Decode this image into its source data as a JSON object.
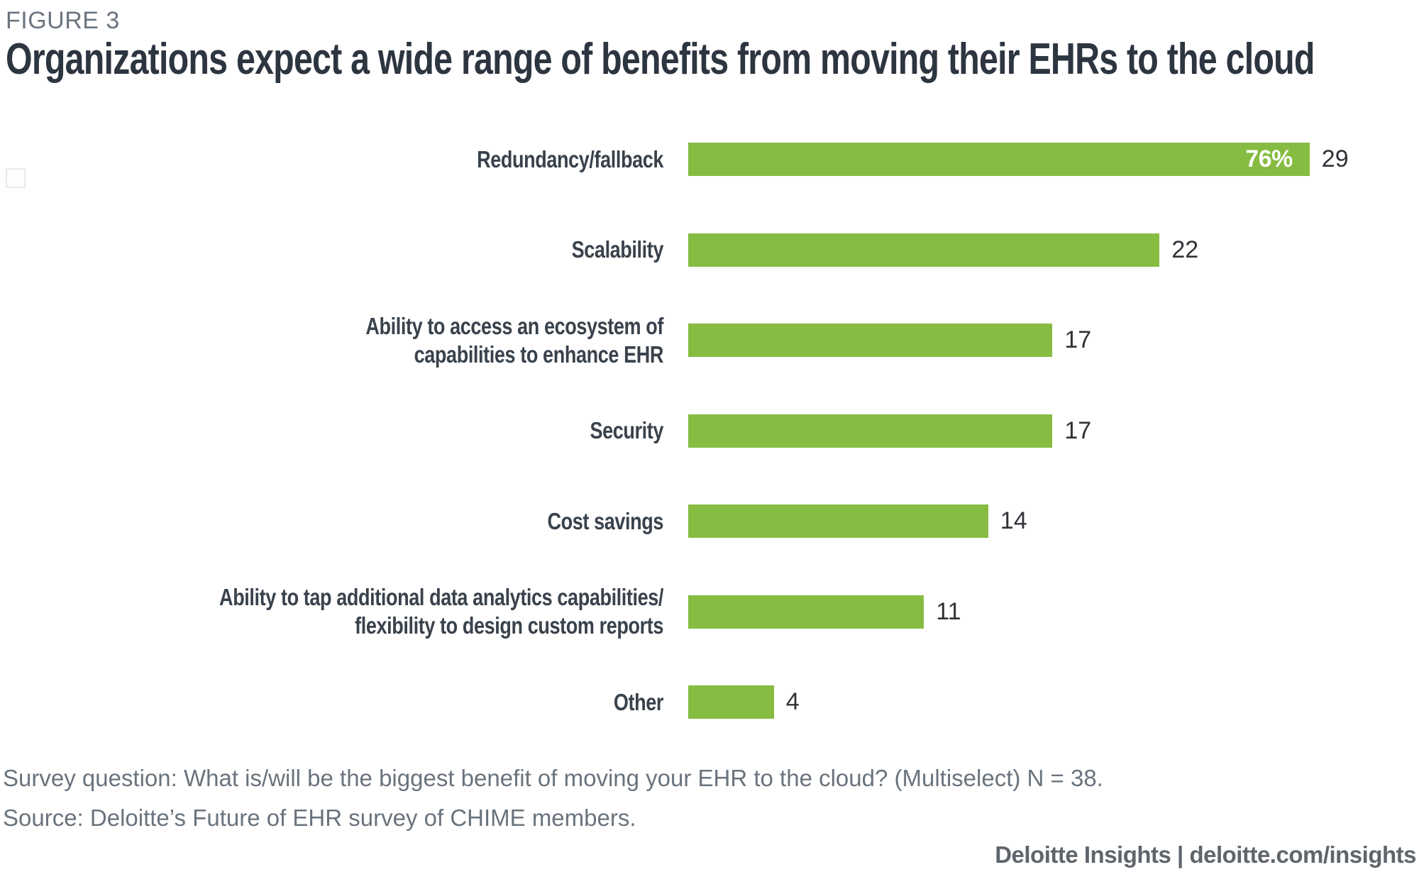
{
  "figure_label": "FIGURE 3",
  "title": "Organizations expect a wide range of benefits from moving their EHRs to the cloud",
  "chart_data": {
    "type": "bar",
    "orientation": "horizontal",
    "title": "Organizations expect a wide range of benefits from moving their EHRs to the cloud",
    "categories": [
      [
        "Redundancy/fallback"
      ],
      [
        "Scalability"
      ],
      [
        "Ability to access an ecosystem of",
        "capabilities to enhance EHR"
      ],
      [
        "Security"
      ],
      [
        "Cost savings"
      ],
      [
        "Ability to tap additional data analytics capabilities/",
        "flexibility to design custom reports"
      ],
      [
        "Other"
      ]
    ],
    "values": [
      29,
      22,
      17,
      17,
      14,
      11,
      4
    ],
    "inside_labels": [
      "76%",
      "",
      "",
      "",
      "",
      "",
      ""
    ],
    "value_labels": [
      "29",
      "22",
      "17",
      "17",
      "14",
      "11",
      "4"
    ],
    "xlim": [
      0,
      29
    ],
    "axes_visible": false,
    "gridlines": false,
    "legend": "none",
    "bar_color": "#86BC42",
    "inside_label_color": "#FFFFFF",
    "value_label_color": "#2F3338",
    "category_label_color": "#39424C"
  },
  "colors": {
    "accent_green": "#86BC42",
    "title_text": "#2C3540",
    "figure_label_text": "#6B7580",
    "footer_text": "#6A737D",
    "attribution_text": "#5F656B",
    "background": "#FFFFFF"
  },
  "footer": {
    "survey_question": "Survey question: What is/will be the biggest benefit of moving your EHR to the cloud? (Multiselect) N = 38.",
    "source": "Source: Deloitte’s Future of EHR survey of CHIME members.",
    "attribution": "Deloitte Insights | deloitte.com/insights"
  }
}
